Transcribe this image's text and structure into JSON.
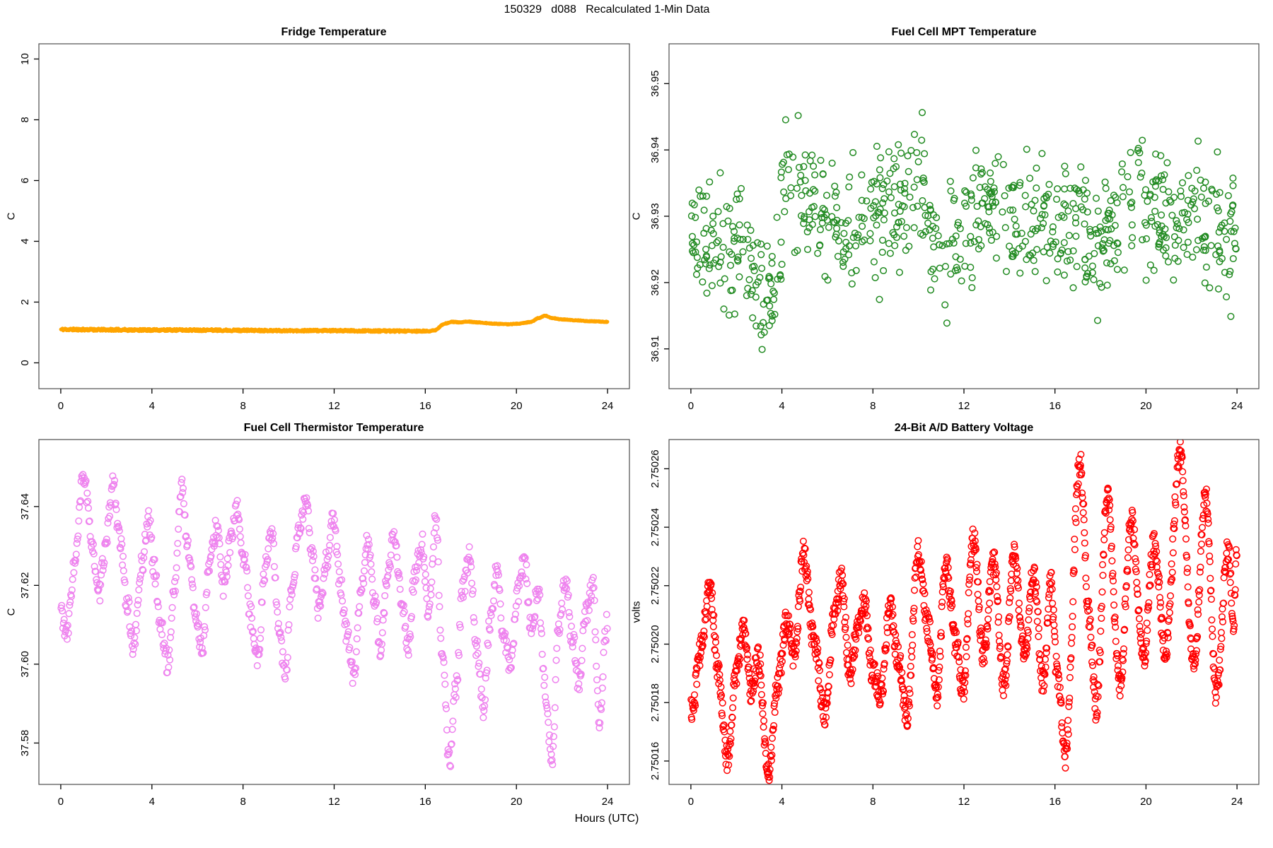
{
  "page": {
    "title": "150329   d088   Recalculated 1-Min Data",
    "xlabel": "Hours (UTC)",
    "background": "#FFFFFF",
    "box_color": "#4D4D4D",
    "tick_color": "#000000"
  },
  "chart_data": [
    {
      "id": "fridge-temperature",
      "type": "scatter",
      "title": "Fridge Temperature",
      "ylabel": "C",
      "color": "#FFA500",
      "marker": {
        "type": "filled-circle",
        "radius": 2.6,
        "stroke_width": 0
      },
      "xlim": [
        0,
        24
      ],
      "x_pad_frac": 0.04,
      "ylim": [
        -0.85,
        10.5
      ],
      "x_tick_values": [
        0,
        4,
        8,
        12,
        16,
        20,
        24
      ],
      "x_tick_labels": [
        "0",
        "4",
        "8",
        "12",
        "16",
        "20",
        "24"
      ],
      "y_tick_values": [
        0,
        2,
        4,
        6,
        8,
        10
      ],
      "y_tick_labels": [
        "0",
        "2",
        "4",
        "6",
        "8",
        "10"
      ],
      "grid": false,
      "legend": null,
      "series": {
        "count": 1440,
        "seed": 11,
        "x_mode": "sequential",
        "keypoints": [
          [
            0,
            1.1
          ],
          [
            2,
            1.09
          ],
          [
            4,
            1.08
          ],
          [
            6,
            1.08
          ],
          [
            8,
            1.07
          ],
          [
            10,
            1.06
          ],
          [
            12,
            1.06
          ],
          [
            14,
            1.05
          ],
          [
            16,
            1.04
          ],
          [
            16.35,
            1.06
          ],
          [
            16.9,
            1.3
          ],
          [
            17.2,
            1.35
          ],
          [
            17.5,
            1.33
          ],
          [
            17.9,
            1.36
          ],
          [
            18.3,
            1.33
          ],
          [
            19.0,
            1.29
          ],
          [
            19.6,
            1.27
          ],
          [
            20.1,
            1.29
          ],
          [
            20.6,
            1.34
          ],
          [
            21.0,
            1.48
          ],
          [
            21.25,
            1.55
          ],
          [
            21.6,
            1.47
          ],
          [
            22.0,
            1.43
          ],
          [
            22.6,
            1.4
          ],
          [
            23.2,
            1.37
          ],
          [
            24.0,
            1.35
          ]
        ],
        "noise": {
          "model": "band",
          "keypoints": [
            [
              0,
              0.042
            ],
            [
              16,
              0.035
            ],
            [
              16.6,
              0.015
            ],
            [
              24,
              0.012
            ]
          ]
        }
      }
    },
    {
      "id": "fuel-cell-mpt-temperature",
      "type": "scatter",
      "title": "Fuel Cell MPT Temperature",
      "ylabel": "C",
      "color": "#228B22",
      "marker": {
        "type": "open-circle",
        "radius": 4.3,
        "stroke_width": 1.5
      },
      "xlim": [
        0,
        24
      ],
      "x_pad_frac": 0.04,
      "ylim": [
        36.904,
        36.956
      ],
      "x_tick_values": [
        0,
        4,
        8,
        12,
        16,
        20,
        24
      ],
      "x_tick_labels": [
        "0",
        "4",
        "8",
        "12",
        "16",
        "20",
        "24"
      ],
      "y_tick_values": [
        36.91,
        36.92,
        36.93,
        36.94,
        36.95
      ],
      "y_tick_labels": [
        "36.91",
        "36.92",
        "36.93",
        "36.94",
        "36.95"
      ],
      "grid": false,
      "legend": null,
      "series": {
        "count": 780,
        "seed": 22,
        "x_mode": "random",
        "keypoints": [
          [
            0,
            36.928
          ],
          [
            1,
            36.925
          ],
          [
            2,
            36.927
          ],
          [
            3,
            36.92
          ],
          [
            3.5,
            36.917
          ],
          [
            4.3,
            36.936
          ],
          [
            5,
            36.934
          ],
          [
            6,
            36.93
          ],
          [
            7,
            36.928
          ],
          [
            8,
            36.929
          ],
          [
            9,
            36.932
          ],
          [
            10,
            36.933
          ],
          [
            11,
            36.924
          ],
          [
            12,
            36.928
          ],
          [
            13,
            36.932
          ],
          [
            14,
            36.93
          ],
          [
            15,
            36.932
          ],
          [
            16,
            36.93
          ],
          [
            17,
            36.928
          ],
          [
            18,
            36.926
          ],
          [
            19,
            36.93
          ],
          [
            19.7,
            36.934
          ],
          [
            20,
            36.93
          ],
          [
            21,
            36.928
          ],
          [
            22,
            36.93
          ],
          [
            23,
            36.928
          ],
          [
            24,
            36.927
          ]
        ],
        "noise": {
          "model": "tri",
          "amp": 0.0095
        },
        "clip": [
          36.9055,
          36.9535
        ]
      }
    },
    {
      "id": "fuel-cell-thermistor-temperature",
      "type": "scatter",
      "title": "Fuel Cell Thermistor Temperature",
      "ylabel": "C",
      "color": "#EE82EE",
      "marker": {
        "type": "open-circle",
        "radius": 4.3,
        "stroke_width": 1.5
      },
      "xlim": [
        0,
        24
      ],
      "x_pad_frac": 0.04,
      "ylim": [
        37.5695,
        37.657
      ],
      "x_tick_values": [
        0,
        4,
        8,
        12,
        16,
        20,
        24
      ],
      "x_tick_labels": [
        "0",
        "4",
        "8",
        "12",
        "16",
        "20",
        "24"
      ],
      "y_tick_values": [
        37.58,
        37.6,
        37.62,
        37.64
      ],
      "y_tick_labels": [
        "37.58",
        "37.60",
        "37.62",
        "37.64"
      ],
      "grid": false,
      "legend": null,
      "series": {
        "count": 900,
        "seed": 33,
        "x_mode": "sequential",
        "keypoints": [
          [
            0.0,
            37.614
          ],
          [
            0.25,
            37.607
          ],
          [
            0.6,
            37.625
          ],
          [
            1.0,
            37.648
          ],
          [
            1.35,
            37.632
          ],
          [
            1.65,
            37.617
          ],
          [
            1.95,
            37.629
          ],
          [
            2.3,
            37.646
          ],
          [
            2.6,
            37.631
          ],
          [
            2.9,
            37.616
          ],
          [
            3.2,
            37.604
          ],
          [
            3.55,
            37.625
          ],
          [
            3.85,
            37.637
          ],
          [
            4.1,
            37.624
          ],
          [
            4.4,
            37.609
          ],
          [
            4.7,
            37.6
          ],
          [
            5.0,
            37.62
          ],
          [
            5.3,
            37.645
          ],
          [
            5.6,
            37.629
          ],
          [
            5.9,
            37.613
          ],
          [
            6.2,
            37.604
          ],
          [
            6.55,
            37.626
          ],
          [
            6.85,
            37.635
          ],
          [
            7.15,
            37.619
          ],
          [
            7.45,
            37.631
          ],
          [
            7.75,
            37.639
          ],
          [
            8.05,
            37.626
          ],
          [
            8.35,
            37.612
          ],
          [
            8.65,
            37.601
          ],
          [
            8.95,
            37.624
          ],
          [
            9.25,
            37.634
          ],
          [
            9.55,
            37.611
          ],
          [
            9.85,
            37.597
          ],
          [
            10.15,
            37.618
          ],
          [
            10.45,
            37.634
          ],
          [
            10.75,
            37.641
          ],
          [
            11.05,
            37.627
          ],
          [
            11.35,
            37.613
          ],
          [
            11.65,
            37.626
          ],
          [
            11.95,
            37.637
          ],
          [
            12.25,
            37.621
          ],
          [
            12.55,
            37.608
          ],
          [
            12.85,
            37.597
          ],
          [
            13.15,
            37.616
          ],
          [
            13.45,
            37.631
          ],
          [
            13.75,
            37.617
          ],
          [
            14.05,
            37.604
          ],
          [
            14.35,
            37.623
          ],
          [
            14.65,
            37.633
          ],
          [
            14.95,
            37.617
          ],
          [
            15.25,
            37.604
          ],
          [
            15.55,
            37.623
          ],
          [
            15.85,
            37.631
          ],
          [
            16.15,
            37.613
          ],
          [
            16.45,
            37.637
          ],
          [
            16.75,
            37.603
          ],
          [
            17.05,
            37.575
          ],
          [
            17.35,
            37.594
          ],
          [
            17.65,
            37.619
          ],
          [
            17.95,
            37.628
          ],
          [
            18.25,
            37.604
          ],
          [
            18.55,
            37.589
          ],
          [
            18.85,
            37.611
          ],
          [
            19.15,
            37.624
          ],
          [
            19.45,
            37.606
          ],
          [
            19.75,
            37.599
          ],
          [
            20.05,
            37.618
          ],
          [
            20.35,
            37.626
          ],
          [
            20.65,
            37.609
          ],
          [
            20.95,
            37.619
          ],
          [
            21.25,
            37.594
          ],
          [
            21.55,
            37.576
          ],
          [
            21.85,
            37.609
          ],
          [
            22.15,
            37.621
          ],
          [
            22.45,
            37.607
          ],
          [
            22.75,
            37.595
          ],
          [
            23.05,
            37.613
          ],
          [
            23.35,
            37.62
          ],
          [
            23.65,
            37.585
          ],
          [
            23.9,
            37.607
          ],
          [
            24.0,
            37.612
          ]
        ],
        "noise": {
          "model": "uniform",
          "amp": 0.0028
        }
      }
    },
    {
      "id": "battery-voltage-24bit-ad",
      "type": "scatter",
      "title": "24-Bit A/D Battery Voltage",
      "ylabel": "volts",
      "color": "#FF0000",
      "marker": {
        "type": "open-circle",
        "radius": 4.3,
        "stroke_width": 1.5
      },
      "xlim": [
        0,
        24
      ],
      "x_pad_frac": 0.04,
      "ylim": [
        2.750152,
        2.75027
      ],
      "x_tick_values": [
        0,
        4,
        8,
        12,
        16,
        20,
        24
      ],
      "x_tick_labels": [
        "0",
        "4",
        "8",
        "12",
        "16",
        "20",
        "24"
      ],
      "y_tick_values": [
        2.75016,
        2.75018,
        2.7502,
        2.75022,
        2.75024,
        2.75026
      ],
      "y_tick_labels": [
        "2.75016",
        "2.75018",
        "2.75020",
        "2.75022",
        "2.75024",
        "2.75026"
      ],
      "grid": false,
      "legend": null,
      "series": {
        "count": 1440,
        "seed": 44,
        "x_mode": "sequential",
        "keypoints": [
          [
            0.1,
            2.750178
          ],
          [
            0.35,
            2.750196
          ],
          [
            0.85,
            2.750219
          ],
          [
            1.2,
            2.75019
          ],
          [
            1.6,
            2.750161
          ],
          [
            2.0,
            2.75019
          ],
          [
            2.3,
            2.750206
          ],
          [
            2.65,
            2.750184
          ],
          [
            2.95,
            2.750196
          ],
          [
            3.4,
            2.750155
          ],
          [
            3.8,
            2.750186
          ],
          [
            4.2,
            2.750207
          ],
          [
            4.55,
            2.750196
          ],
          [
            4.95,
            2.750231
          ],
          [
            5.4,
            2.750201
          ],
          [
            5.9,
            2.750176
          ],
          [
            6.3,
            2.75021
          ],
          [
            6.6,
            2.750222
          ],
          [
            7.0,
            2.75019
          ],
          [
            7.3,
            2.750204
          ],
          [
            7.6,
            2.750215
          ],
          [
            8.0,
            2.75019
          ],
          [
            8.35,
            2.750183
          ],
          [
            8.75,
            2.750213
          ],
          [
            9.1,
            2.750195
          ],
          [
            9.5,
            2.750176
          ],
          [
            10.0,
            2.750232
          ],
          [
            10.45,
            2.750205
          ],
          [
            10.8,
            2.750182
          ],
          [
            11.2,
            2.750228
          ],
          [
            11.65,
            2.7502
          ],
          [
            11.95,
            2.750184
          ],
          [
            12.4,
            2.750237
          ],
          [
            12.85,
            2.750197
          ],
          [
            13.3,
            2.750228
          ],
          [
            13.75,
            2.750186
          ],
          [
            14.2,
            2.75023
          ],
          [
            14.65,
            2.750196
          ],
          [
            15.05,
            2.750224
          ],
          [
            15.5,
            2.750186
          ],
          [
            15.8,
            2.750222
          ],
          [
            16.1,
            2.75019
          ],
          [
            16.45,
            2.750162
          ],
          [
            17.1,
            2.750262
          ],
          [
            17.5,
            2.75021
          ],
          [
            17.8,
            2.750178
          ],
          [
            18.3,
            2.75025
          ],
          [
            18.85,
            2.750186
          ],
          [
            19.35,
            2.750242
          ],
          [
            19.9,
            2.750196
          ],
          [
            20.35,
            2.750234
          ],
          [
            20.85,
            2.750198
          ],
          [
            21.5,
            2.750265
          ],
          [
            22.1,
            2.750192
          ],
          [
            22.6,
            2.750251
          ],
          [
            23.1,
            2.750183
          ],
          [
            23.6,
            2.750233
          ],
          [
            23.85,
            2.750208
          ],
          [
            24.0,
            2.750233
          ]
        ],
        "noise": {
          "model": "uniform",
          "amp": 4.5e-06
        }
      }
    }
  ]
}
